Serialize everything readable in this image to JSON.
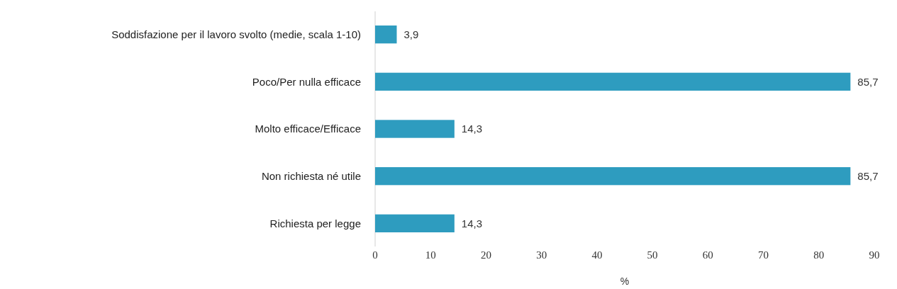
{
  "chart_data": {
    "type": "bar",
    "orientation": "horizontal",
    "xlabel": "%",
    "categories": [
      "Soddisfazione per il lavoro svolto (medie, scala 1-10)",
      "Poco/Per nulla efficace",
      "Molto efficace/Efficace",
      "Non richiesta né utile",
      "Richiesta per legge"
    ],
    "values": [
      3.9,
      85.7,
      14.3,
      85.7,
      14.3
    ],
    "value_labels": [
      "3,9",
      "85,7",
      "14,3",
      "85,7",
      "14,3"
    ],
    "color": "#2e9cbf",
    "xlim": [
      0,
      90
    ],
    "xticks": [
      0,
      10,
      20,
      30,
      40,
      50,
      60,
      70,
      80,
      90
    ],
    "grid": false
  }
}
